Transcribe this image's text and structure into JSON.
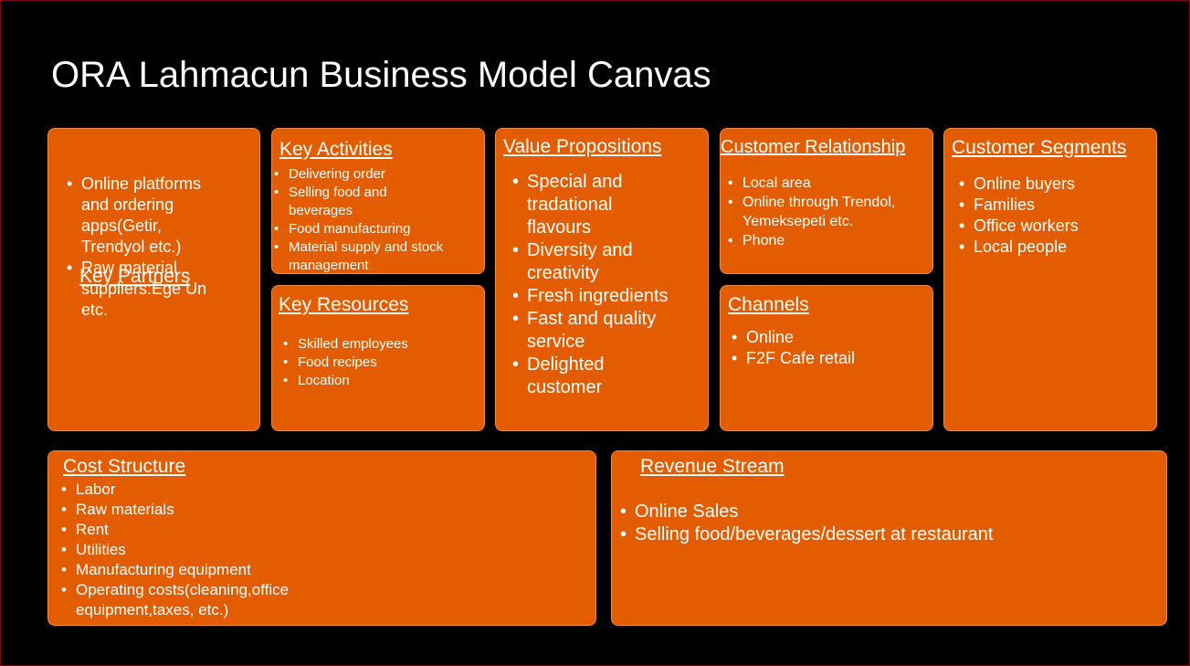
{
  "title": "ORA Lahmacun Business Model Canvas",
  "colors": {
    "background": "#000000",
    "box_fill": "#e35d00",
    "text": "#ffffff"
  },
  "key_partners": {
    "heading": "Key Partners",
    "items": [
      "Online platforms and ordering apps(Getir, Trendyol etc.)",
      "Raw material suppliers:Ege Un etc."
    ]
  },
  "key_activities": {
    "heading": "Key Activities",
    "items": [
      "Delivering order",
      "Selling food and beverages",
      "Food manufacturing",
      "Material supply and stock management"
    ]
  },
  "key_resources": {
    "heading": "Key Resources",
    "items": [
      "Skilled employees",
      "Food recipes",
      "Location"
    ]
  },
  "value_propositions": {
    "heading": "Value Propositions",
    "items": [
      "Special and tradational flavours",
      "Diversity and creativity",
      "Fresh ingredients",
      "Fast and quality service",
      "Delighted customer"
    ]
  },
  "customer_relationship": {
    "heading": "Customer Relationship",
    "items": [
      "Local area",
      "Online through Trendol, Yemeksepeti etc.",
      "Phone"
    ]
  },
  "channels": {
    "heading": "Channels",
    "items": [
      "Online",
      "F2F Cafe retail"
    ]
  },
  "customer_segments": {
    "heading": "Customer Segments",
    "items": [
      "Online buyers",
      "Families",
      "Office workers",
      "Local people"
    ]
  },
  "cost_structure": {
    "heading": "Cost Structure",
    "items": [
      "Labor",
      "Raw materials",
      "Rent",
      "Utilities",
      "Manufacturing equipment",
      "Operating costs(cleaning,office equipment,taxes, etc.)"
    ]
  },
  "revenue_stream": {
    "heading": "Revenue Stream",
    "items": [
      "Online Sales",
      "Selling food/beverages/dessert at restaurant"
    ]
  }
}
